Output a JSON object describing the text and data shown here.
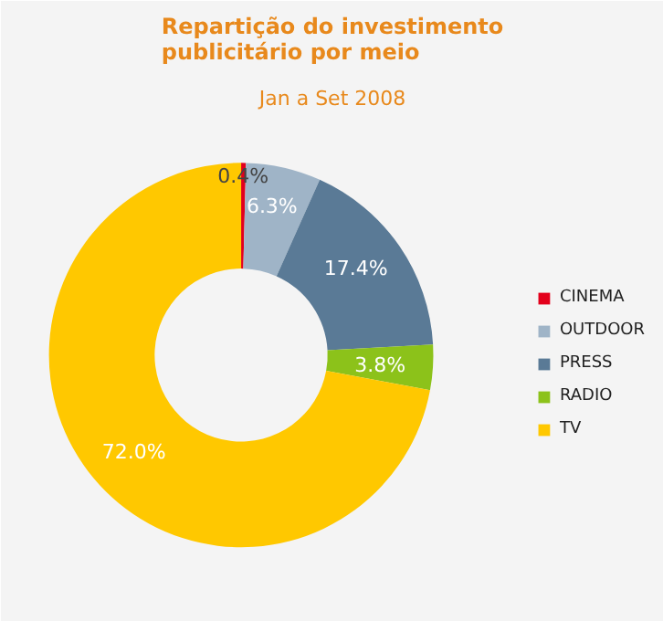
{
  "chart_data": {
    "type": "donut",
    "title": "Repartição do investimento\npublicitário por meio",
    "subtitle": "Jan a Set 2008",
    "categories": [
      "CINEMA",
      "OUTDOOR",
      "PRESS",
      "RADIO",
      "TV"
    ],
    "values": [
      0.4,
      6.3,
      17.4,
      3.8,
      72.0
    ],
    "colors": [
      "#e3001b",
      "#9fb4c7",
      "#5a7a96",
      "#8cc21a",
      "#ffc800"
    ],
    "value_labels": [
      "0.4%",
      "6.3%",
      "17.4%",
      "3.8%",
      "72.0%"
    ],
    "legend": "right"
  }
}
